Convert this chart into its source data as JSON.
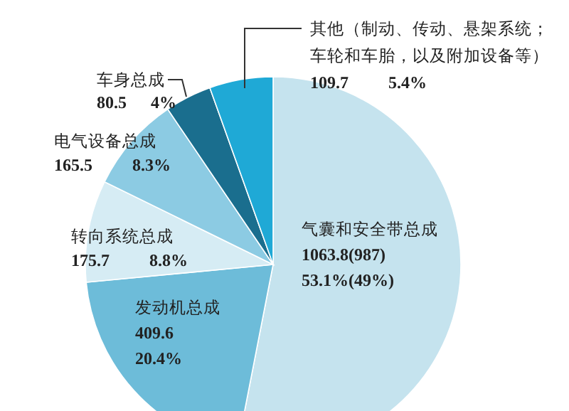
{
  "chart_data": {
    "type": "pie",
    "categories": [
      "气囊和安全带总成",
      "发动机总成",
      "转向系统总成",
      "电气设备总成",
      "车身总成",
      "其他（制动、传动、悬架系统；车轮和车胎，以及附加设备等）"
    ],
    "values": [
      1063.8,
      409.6,
      175.7,
      165.5,
      80.5,
      109.7
    ],
    "colors": [
      "#c5e3ee",
      "#6dbcd9",
      "#d6ecf4",
      "#8ccbe3",
      "#1a6e8e",
      "#1fa9d6"
    ],
    "value_labels": [
      "1063.8(987) 53.1%(49%)",
      "409.6 20.4%",
      "175.7 8.8%",
      "165.5 8.3%",
      "80.5 4%",
      "109.7 5.4%"
    ]
  }
}
